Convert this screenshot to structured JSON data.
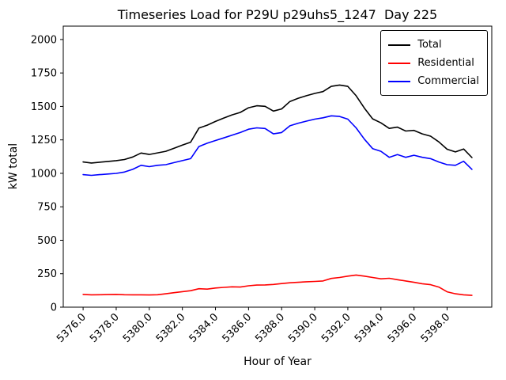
{
  "chart_data": {
    "type": "line",
    "title": "Timeseries Load for P29U p29uhs5_1247  Day 225",
    "xlabel": "Hour of Year",
    "ylabel": "kW total",
    "xlim": [
      5374.8,
      5400.7
    ],
    "ylim": [
      0,
      2100
    ],
    "grid": false,
    "legend_position": "upper right",
    "xticks": [
      5376,
      5378,
      5380,
      5382,
      5384,
      5386,
      5388,
      5390,
      5392,
      5394,
      5396,
      5398
    ],
    "xtick_labels": [
      "5376.0",
      "5378.0",
      "5380.0",
      "5382.0",
      "5384.0",
      "5386.0",
      "5388.0",
      "5390.0",
      "5392.0",
      "5394.0",
      "5396.0",
      "5398.0"
    ],
    "yticks": [
      0,
      250,
      500,
      750,
      1000,
      1250,
      1500,
      1750,
      2000
    ],
    "x": [
      5376.0,
      5376.5,
      5377.0,
      5377.5,
      5378.0,
      5378.5,
      5379.0,
      5379.5,
      5380.0,
      5380.5,
      5381.0,
      5381.5,
      5382.0,
      5382.5,
      5383.0,
      5383.5,
      5384.0,
      5384.5,
      5385.0,
      5385.5,
      5386.0,
      5386.5,
      5387.0,
      5387.5,
      5388.0,
      5388.5,
      5389.0,
      5389.5,
      5390.0,
      5390.5,
      5391.0,
      5391.5,
      5392.0,
      5392.5,
      5393.0,
      5393.5,
      5394.0,
      5394.5,
      5395.0,
      5395.5,
      5396.0,
      5396.5,
      5397.0,
      5397.5,
      5398.0,
      5398.5,
      5399.0,
      5399.5
    ],
    "series": [
      {
        "name": "Total",
        "color": "#000000",
        "values": [
          1085,
          1077,
          1083,
          1089,
          1095,
          1103,
          1122,
          1152,
          1141,
          1153,
          1165,
          1188,
          1211,
          1233,
          1338,
          1360,
          1388,
          1413,
          1437,
          1455,
          1490,
          1505,
          1501,
          1465,
          1481,
          1537,
          1561,
          1580,
          1597,
          1611,
          1650,
          1660,
          1650,
          1580,
          1487,
          1407,
          1377,
          1336,
          1345,
          1316,
          1321,
          1295,
          1278,
          1235,
          1180,
          1160,
          1182,
          1118
        ]
      },
      {
        "name": "Residential",
        "color": "#ff0000",
        "values": [
          95,
          92,
          93,
          94,
          95,
          93,
          92,
          92,
          91,
          93,
          100,
          108,
          116,
          123,
          138,
          135,
          143,
          148,
          152,
          150,
          160,
          165,
          166,
          170,
          176,
          182,
          186,
          190,
          192,
          196,
          215,
          222,
          232,
          240,
          232,
          222,
          212,
          216,
          205,
          196,
          186,
          175,
          168,
          150,
          115,
          100,
          92,
          88
        ]
      },
      {
        "name": "Commercial",
        "color": "#0000ff",
        "values": [
          990,
          985,
          990,
          995,
          1000,
          1010,
          1030,
          1060,
          1050,
          1060,
          1065,
          1080,
          1095,
          1110,
          1200,
          1225,
          1245,
          1265,
          1285,
          1305,
          1330,
          1340,
          1335,
          1295,
          1305,
          1355,
          1375,
          1390,
          1405,
          1415,
          1430,
          1425,
          1405,
          1340,
          1255,
          1185,
          1165,
          1120,
          1140,
          1120,
          1135,
          1120,
          1110,
          1085,
          1065,
          1060,
          1090,
          1030
        ]
      }
    ]
  }
}
